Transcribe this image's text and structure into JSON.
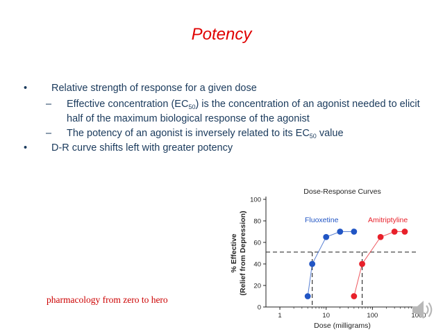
{
  "slide": {
    "title": "Potency",
    "bullets": [
      {
        "level": 1,
        "parts": [
          {
            "t": "Relative strength of response for a given dose"
          }
        ]
      },
      {
        "level": 2,
        "parts": [
          {
            "t": "Effective concentration (EC"
          },
          {
            "t": "50",
            "sub": true
          },
          {
            "t": ") is the concentration of an agonist needed to elicit half of the maximum biological response of the agonist"
          }
        ]
      },
      {
        "level": 2,
        "parts": [
          {
            "t": "The potency of an agonist is inversely related to its EC"
          },
          {
            "t": "50",
            "sub": true
          },
          {
            "t": " value"
          }
        ]
      },
      {
        "level": 1,
        "parts": [
          {
            "t": "D-R curve shifts left with greater potency"
          }
        ]
      }
    ],
    "markers": {
      "level1": "•",
      "level2": "–"
    },
    "credit": "pharmacology from zero to hero",
    "speaker_icon": "speaker-icon"
  },
  "chart_data": {
    "type": "line",
    "title": "Dose-Response Curves",
    "xlabel": "Dose (milligrams)",
    "ylabel_line1": "% Effective",
    "ylabel_line2": "(Relief from Depression)",
    "x_scale": "log",
    "xlim": [
      0.5,
      1000
    ],
    "ylim": [
      0,
      100
    ],
    "x_ticks": [
      1,
      10,
      100,
      1000
    ],
    "x_tick_labels": [
      "1",
      "10",
      "100",
      "1000"
    ],
    "y_ticks": [
      0,
      20,
      40,
      60,
      80,
      100
    ],
    "y_tick_labels": [
      "0",
      "20",
      "40",
      "60",
      "80",
      "100"
    ],
    "grid": false,
    "reference_line_y": 51,
    "series": [
      {
        "name": "Fluoxetine",
        "color": "#2155c4",
        "x": [
          4,
          5,
          10,
          20,
          40
        ],
        "y": [
          10,
          40,
          65,
          70,
          70
        ]
      },
      {
        "name": "Amitriptyline",
        "color": "#e8202a",
        "x": [
          40,
          60,
          150,
          300,
          500
        ],
        "y": [
          10,
          40,
          65,
          70,
          70
        ]
      }
    ],
    "ec50_drops": [
      {
        "series": "Fluoxetine",
        "x": 5
      },
      {
        "series": "Amitriptyline",
        "x": 60
      }
    ]
  }
}
